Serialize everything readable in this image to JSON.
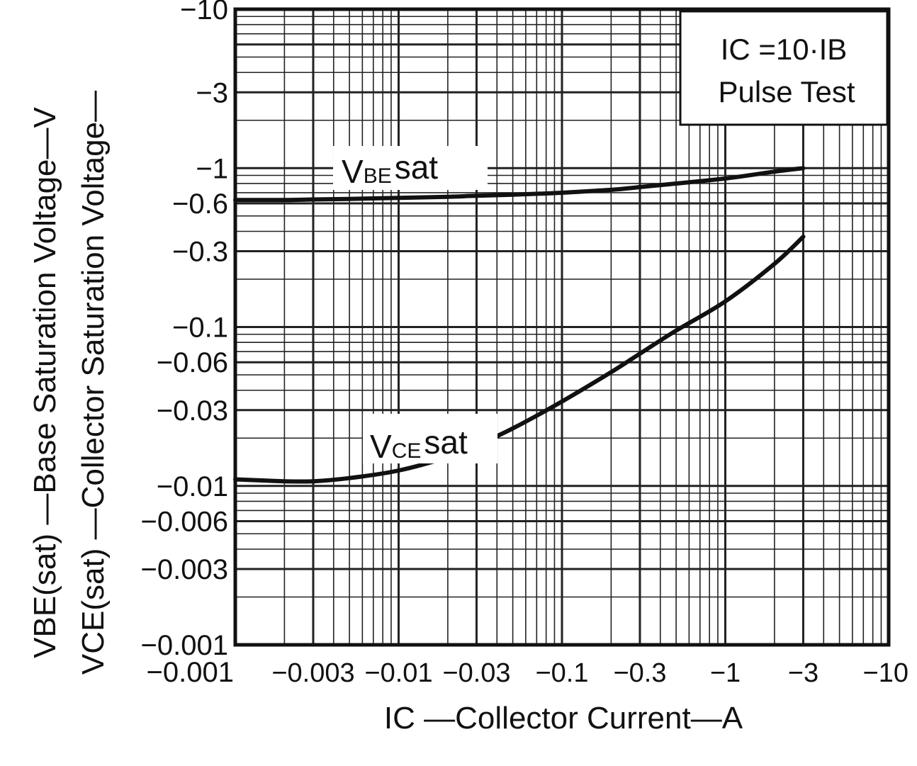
{
  "chart_data": {
    "type": "line",
    "x_scale": "log",
    "y_scale": "log",
    "xlim": [
      -0.001,
      -10
    ],
    "ylim": [
      -0.001,
      -10
    ],
    "grid": true,
    "x_ticks": [
      "-0.001",
      "-0.003",
      "-0.01",
      "-0.03",
      "-0.1",
      "-0.3",
      "-1",
      "-3",
      "-10"
    ],
    "y_ticks": [
      "-10",
      "-3",
      "-1",
      "-0.6",
      "-0.3",
      "-0.1",
      "-0.06",
      "-0.03",
      "-0.01",
      "-0.006",
      "-0.003",
      "-0.001"
    ],
    "xlabel": "IC —Collector Current—A",
    "ylabel_lines": [
      "VBE(sat) —Base Saturation Voltage—V",
      "VCE(sat) —Collector Saturation Voltage—"
    ],
    "annotation_lines": [
      "IC =10·IB",
      "Pulse Test"
    ],
    "series": [
      {
        "name": "VBEsat",
        "label_main": "V",
        "label_sub": "BE",
        "label_tail": "sat",
        "x": [
          -0.001,
          -0.002,
          -0.003,
          -0.005,
          -0.01,
          -0.02,
          -0.03,
          -0.05,
          -0.1,
          -0.2,
          -0.3,
          -0.5,
          -1,
          -2,
          -3
        ],
        "y": [
          -0.63,
          -0.63,
          -0.635,
          -0.64,
          -0.65,
          -0.66,
          -0.67,
          -0.68,
          -0.7,
          -0.73,
          -0.76,
          -0.8,
          -0.86,
          -0.95,
          -1.0
        ]
      },
      {
        "name": "VCEsat",
        "label_main": "V",
        "label_sub": "CE",
        "label_tail": "sat",
        "x": [
          -0.001,
          -0.002,
          -0.003,
          -0.005,
          -0.01,
          -0.02,
          -0.03,
          -0.05,
          -0.1,
          -0.2,
          -0.3,
          -0.5,
          -1,
          -2,
          -3
        ],
        "y": [
          -0.011,
          -0.0107,
          -0.0107,
          -0.0112,
          -0.0125,
          -0.0152,
          -0.018,
          -0.023,
          -0.034,
          -0.052,
          -0.068,
          -0.095,
          -0.145,
          -0.25,
          -0.37
        ]
      }
    ]
  }
}
